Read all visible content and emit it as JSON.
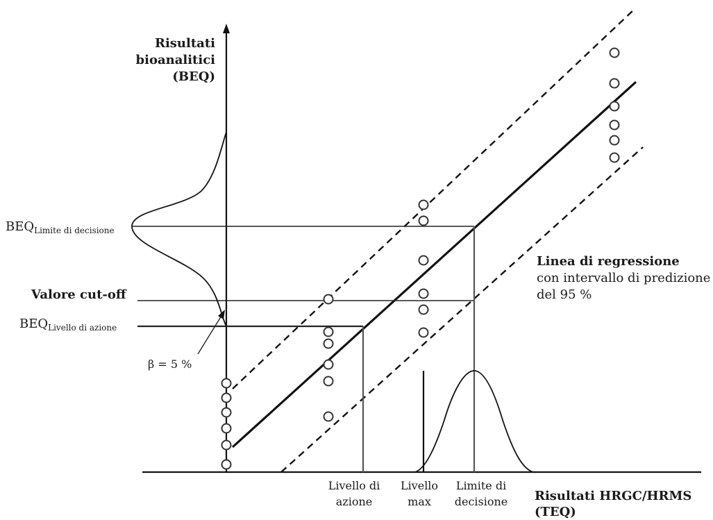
{
  "y_axis": {
    "title_lines": [
      "Risultati",
      "bioanalitici",
      "(BEQ)"
    ]
  },
  "x_axis": {
    "title_lines": [
      "Risultati HRGC/HRMS",
      "(TEQ)"
    ]
  },
  "labels": {
    "beq_limite": {
      "main": "BEQ",
      "sub": "Limite di decisione"
    },
    "valore_cutoff": "Valore cut-off",
    "beq_livello": {
      "main": "BEQ",
      "sub": "Livello di azione"
    },
    "beta": "β = 5 %"
  },
  "legend": {
    "title": "Linea di regressione",
    "lines": [
      "con intervallo di predizione",
      "del 95 %"
    ]
  },
  "x_ticks": [
    {
      "lines": [
        "Livello di",
        "azione"
      ]
    },
    {
      "lines": [
        "Livello",
        "max"
      ]
    },
    {
      "lines": [
        "Limite di",
        "decisione"
      ]
    }
  ],
  "series": {
    "regression": {
      "name": "Linea di regressione",
      "style": "solid"
    },
    "prediction_interval": {
      "name": "intervallo di predizione del 95 %",
      "style": "dashed"
    }
  },
  "colors": {
    "ink": "#111111",
    "point_fill": "#ffffff",
    "guide": "#555555"
  }
}
